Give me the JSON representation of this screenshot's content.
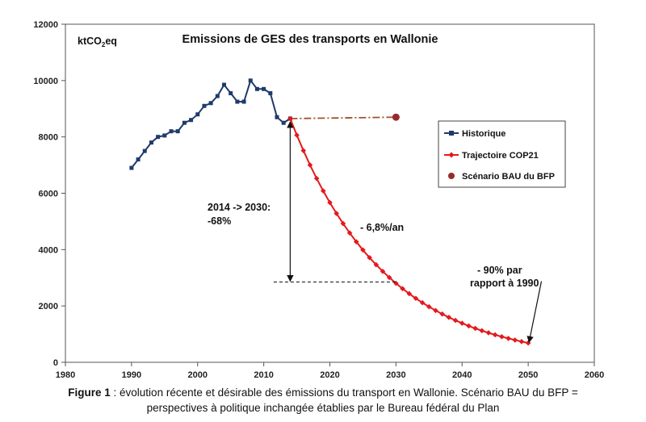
{
  "chart_data": {
    "type": "line",
    "title": "Emissions de GES des transports en Wallonie",
    "ylabel": {
      "prefix": "ktCO",
      "sub": "2",
      "suffix": "eq"
    },
    "xlim": [
      1980,
      2060
    ],
    "ylim": [
      0,
      12000
    ],
    "x_ticks": [
      1980,
      1990,
      2000,
      2010,
      2020,
      2030,
      2040,
      2050,
      2060
    ],
    "y_ticks": [
      0,
      2000,
      4000,
      6000,
      8000,
      10000,
      12000
    ],
    "grid": false,
    "legend": {
      "placement": "right",
      "entries": [
        "Historique",
        "Trajectoire COP21",
        "Scénario BAU du BFP"
      ]
    },
    "series": [
      {
        "name": "Historique",
        "color": "#1f3a6b",
        "marker": "square",
        "x": [
          1990,
          1991,
          1992,
          1993,
          1994,
          1995,
          1996,
          1997,
          1998,
          1999,
          2000,
          2001,
          2002,
          2003,
          2004,
          2005,
          2006,
          2007,
          2008,
          2009,
          2010,
          2011,
          2012,
          2013,
          2014
        ],
        "y": [
          6900,
          7200,
          7500,
          7800,
          8000,
          8050,
          8200,
          8200,
          8500,
          8600,
          8800,
          9100,
          9200,
          9450,
          9850,
          9550,
          9250,
          9250,
          10000,
          9700,
          9700,
          9550,
          8700,
          8500,
          8650
        ]
      },
      {
        "name": "Trajectoire COP21",
        "color": "#e31a1c",
        "marker": "diamond",
        "x_start": 2014,
        "x_end": 2050,
        "y_start": 8650,
        "annual_rate": -0.068
      },
      {
        "name": "Scénario BAU du BFP",
        "color": "#9a2a2a",
        "line_color": "#a0522d",
        "marker": "circle",
        "x": [
          2014,
          2030
        ],
        "y": [
          8650,
          8700
        ]
      }
    ],
    "annotations": {
      "range": {
        "line1": "2014 -> 2030:",
        "line2": "-68%",
        "x": 2014,
        "y_top": 8650,
        "y_bottom": 2850,
        "dash_to_x": 2030
      },
      "rate": {
        "text": "- 6,8%/an",
        "x": 2024.5,
        "y": 4900
      },
      "target": {
        "line1": "- 90% par",
        "line2": "rapport à 1990",
        "x": 2052,
        "y": 3050,
        "arrow_to_x": 2050,
        "arrow_to_y": 650
      }
    }
  },
  "caption": {
    "label": "Figure 1",
    "line1": " : évolution récente et désirable des émissions du transport en Wallonie. Scénario BAU du BFP =",
    "line2": "perspectives à politique inchangée établies par le Bureau fédéral du Plan"
  }
}
